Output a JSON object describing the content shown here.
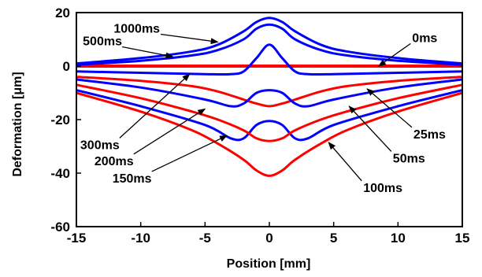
{
  "chart_data": {
    "type": "line",
    "xlabel": "Position [mm]",
    "ylabel": "Deformation [μm]",
    "xlim": [
      -15,
      15
    ],
    "ylim": [
      -60,
      20
    ],
    "xticks": [
      -15,
      -10,
      -5,
      0,
      5,
      10,
      15
    ],
    "yticks": [
      -60,
      -40,
      -20,
      0,
      20
    ],
    "grid": false,
    "colors": {
      "red": "#ff0000",
      "blue": "#0000ff"
    },
    "series": [
      {
        "label": "0ms",
        "color": "red",
        "width": 4,
        "x": [
          -15,
          -5,
          0,
          5,
          15
        ],
        "y": [
          0,
          0,
          0,
          0,
          0
        ]
      },
      {
        "label": "25ms",
        "color": "red",
        "width": 3,
        "x": [
          -15,
          -10,
          -6,
          -4,
          -2,
          -1,
          0,
          1,
          2,
          4,
          6,
          10,
          15
        ],
        "y": [
          -4,
          -5.5,
          -7.5,
          -9.5,
          -12.5,
          -14,
          -15,
          -14,
          -12.5,
          -9.5,
          -7.5,
          -5.5,
          -4
        ]
      },
      {
        "label": "50ms",
        "color": "blue",
        "width": 3,
        "x": [
          -15,
          -10,
          -5,
          -3,
          -2,
          -1,
          0,
          1,
          2,
          3,
          5,
          10,
          15
        ],
        "y": [
          -5,
          -8,
          -12.5,
          -15,
          -14,
          -10,
          -9,
          -10,
          -14,
          -15,
          -12.5,
          -8,
          -5
        ]
      },
      {
        "label": "100ms",
        "color": "red",
        "width": 3,
        "x": [
          -15,
          -10,
          -6,
          -4,
          -2,
          -1,
          0,
          1,
          2,
          4,
          6,
          10,
          15
        ],
        "y": [
          -10,
          -17,
          -24,
          -29,
          -35,
          -39,
          -41,
          -39,
          -35,
          -29,
          -24,
          -17,
          -10
        ]
      },
      {
        "label": "150ms",
        "color": "blue",
        "width": 3,
        "x": [
          -15,
          -10,
          -5,
          -3,
          -2,
          -1,
          0,
          1,
          2,
          3,
          5,
          10,
          15
        ],
        "y": [
          -9,
          -15,
          -22,
          -27,
          -27,
          -22,
          -20.5,
          -22,
          -27,
          -27,
          -22,
          -15,
          -9
        ]
      },
      {
        "label": "200ms",
        "color": "red",
        "width": 3,
        "x": [
          -15,
          -10,
          -6,
          -4,
          -2,
          -1,
          0,
          1,
          2,
          4,
          6,
          10,
          15
        ],
        "y": [
          -7,
          -12,
          -17,
          -20,
          -24,
          -27,
          -28,
          -27,
          -24,
          -20,
          -17,
          -12,
          -7
        ]
      },
      {
        "label": "300ms",
        "color": "blue",
        "width": 3,
        "x": [
          -15,
          -10,
          -5,
          -3,
          -2,
          -1,
          0,
          1,
          2,
          3,
          5,
          10,
          15
        ],
        "y": [
          -2,
          -2.5,
          -3,
          -3,
          -2,
          3,
          8,
          3,
          -2,
          -3,
          -3,
          -2.5,
          -2
        ]
      },
      {
        "label": "500ms",
        "color": "blue",
        "width": 3,
        "x": [
          -15,
          -10,
          -6,
          -4,
          -2,
          -1,
          0,
          1,
          2,
          4,
          6,
          10,
          15
        ],
        "y": [
          0.5,
          2,
          4,
          6,
          10,
          14,
          15.5,
          14,
          10,
          6,
          4,
          2,
          0.5
        ]
      },
      {
        "label": "1000ms",
        "color": "blue",
        "width": 3,
        "x": [
          -15,
          -10,
          -6,
          -4,
          -2,
          -1,
          0,
          1,
          2,
          4,
          6,
          10,
          15
        ],
        "y": [
          1,
          3,
          5.5,
          8,
          13,
          16.5,
          18,
          16.5,
          13,
          8,
          5.5,
          3,
          1
        ]
      }
    ],
    "annotations": [
      {
        "text": "1000ms",
        "text_x": -12.1,
        "text_y": 12.5,
        "arrow_x": -4,
        "arrow_y": 9,
        "anchor": "start"
      },
      {
        "text": "500ms",
        "text_x": -14.5,
        "text_y": 7.8,
        "arrow_x": -7.5,
        "arrow_y": 3.5,
        "anchor": "start"
      },
      {
        "text": "0ms",
        "text_x": 11.1,
        "text_y": 9,
        "arrow_x": 8.5,
        "arrow_y": 0,
        "anchor": "start"
      },
      {
        "text": "300ms",
        "text_x": -14.7,
        "text_y": -31,
        "arrow_x": -6.2,
        "arrow_y": -3,
        "anchor": "start"
      },
      {
        "text": "200ms",
        "text_x": -13.6,
        "text_y": -37,
        "arrow_x": -5,
        "arrow_y": -16,
        "anchor": "start"
      },
      {
        "text": "150ms",
        "text_x": -12.2,
        "text_y": -43.5,
        "arrow_x": -3.3,
        "arrow_y": -26,
        "anchor": "start"
      },
      {
        "text": "25ms",
        "text_x": 11.2,
        "text_y": -27,
        "arrow_x": 7.6,
        "arrow_y": -8.5,
        "anchor": "start"
      },
      {
        "text": "50ms",
        "text_x": 9.6,
        "text_y": -36,
        "arrow_x": 6.2,
        "arrow_y": -15,
        "anchor": "start"
      },
      {
        "text": "100ms",
        "text_x": 7.3,
        "text_y": -47,
        "arrow_x": 4.6,
        "arrow_y": -28.5,
        "anchor": "start"
      }
    ]
  }
}
